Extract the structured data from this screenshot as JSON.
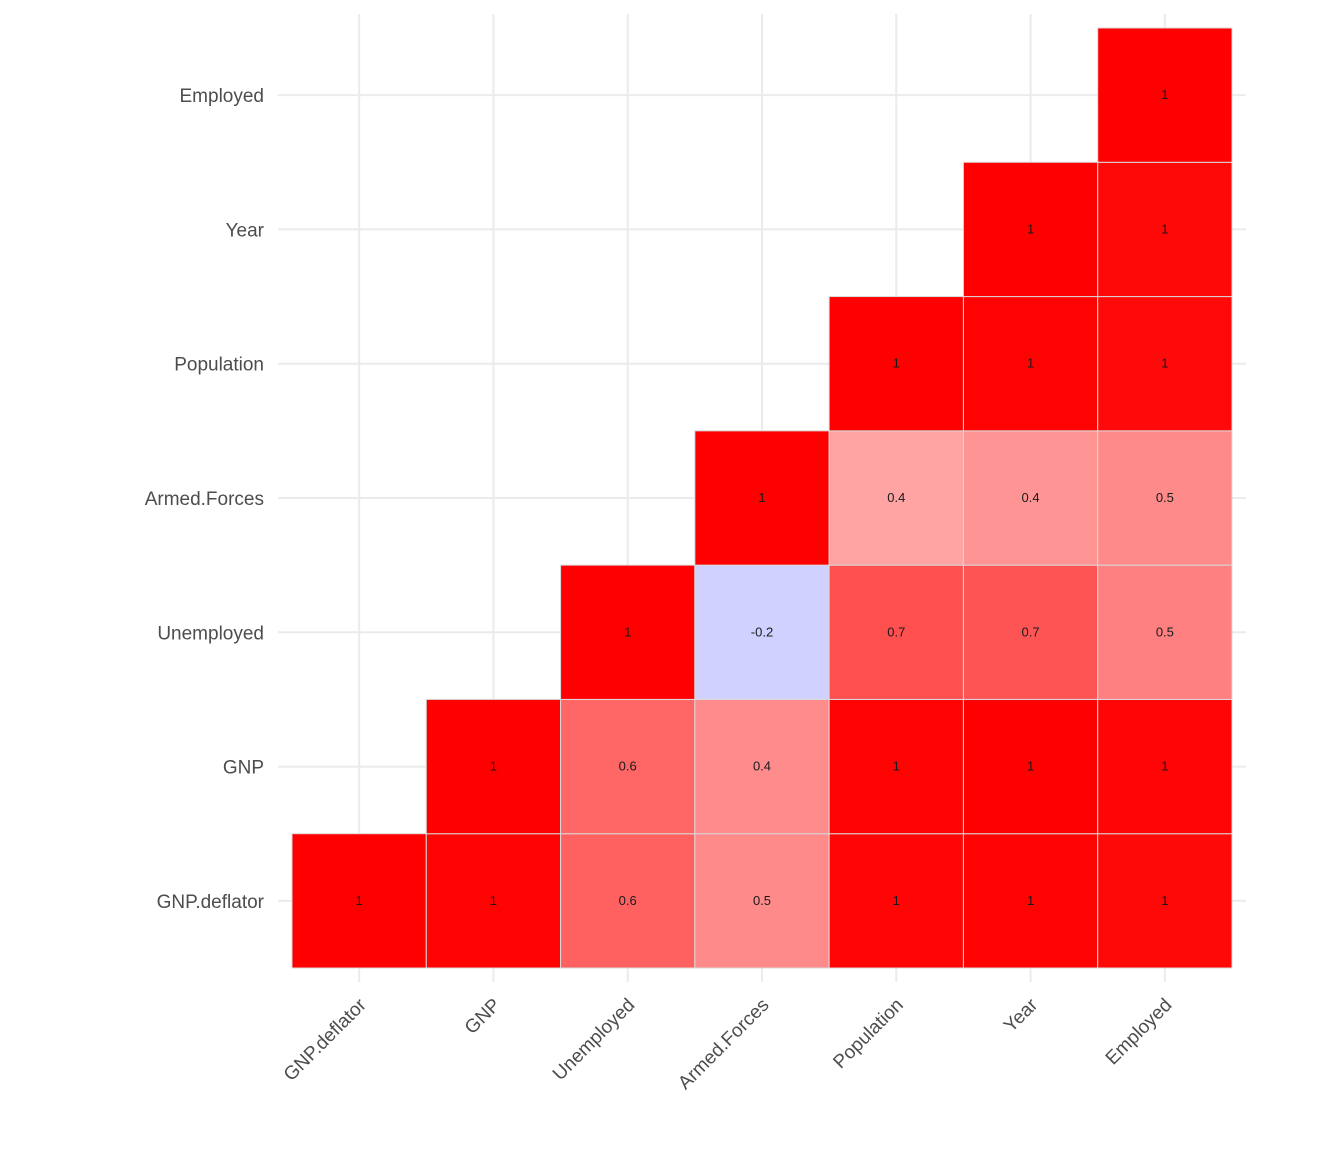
{
  "chart_data": {
    "type": "heatmap",
    "title": "",
    "xlabel": "",
    "ylabel": "",
    "variables": [
      "GNP.deflator",
      "GNP",
      "Unemployed",
      "Armed.Forces",
      "Population",
      "Year",
      "Employed"
    ],
    "cells": [
      {
        "x": "GNP.deflator",
        "y": "GNP.deflator",
        "value": 1.0,
        "label": "1"
      },
      {
        "x": "GNP",
        "y": "GNP.deflator",
        "value": 0.99,
        "label": "1"
      },
      {
        "x": "Unemployed",
        "y": "GNP.deflator",
        "value": 0.62,
        "label": "0.6"
      },
      {
        "x": "Armed.Forces",
        "y": "GNP.deflator",
        "value": 0.46,
        "label": "0.5"
      },
      {
        "x": "Population",
        "y": "GNP.deflator",
        "value": 0.98,
        "label": "1"
      },
      {
        "x": "Year",
        "y": "GNP.deflator",
        "value": 0.99,
        "label": "1"
      },
      {
        "x": "Employed",
        "y": "GNP.deflator",
        "value": 0.97,
        "label": "1"
      },
      {
        "x": "GNP",
        "y": "GNP",
        "value": 1.0,
        "label": "1"
      },
      {
        "x": "Unemployed",
        "y": "GNP",
        "value": 0.6,
        "label": "0.6"
      },
      {
        "x": "Armed.Forces",
        "y": "GNP",
        "value": 0.45,
        "label": "0.4"
      },
      {
        "x": "Population",
        "y": "GNP",
        "value": 0.99,
        "label": "1"
      },
      {
        "x": "Year",
        "y": "GNP",
        "value": 1.0,
        "label": "1"
      },
      {
        "x": "Employed",
        "y": "GNP",
        "value": 0.98,
        "label": "1"
      },
      {
        "x": "Unemployed",
        "y": "Unemployed",
        "value": 1.0,
        "label": "1"
      },
      {
        "x": "Armed.Forces",
        "y": "Unemployed",
        "value": -0.18,
        "label": "-0.2"
      },
      {
        "x": "Population",
        "y": "Unemployed",
        "value": 0.69,
        "label": "0.7"
      },
      {
        "x": "Year",
        "y": "Unemployed",
        "value": 0.67,
        "label": "0.7"
      },
      {
        "x": "Employed",
        "y": "Unemployed",
        "value": 0.5,
        "label": "0.5"
      },
      {
        "x": "Armed.Forces",
        "y": "Armed.Forces",
        "value": 1.0,
        "label": "1"
      },
      {
        "x": "Population",
        "y": "Armed.Forces",
        "value": 0.36,
        "label": "0.4"
      },
      {
        "x": "Year",
        "y": "Armed.Forces",
        "value": 0.42,
        "label": "0.4"
      },
      {
        "x": "Employed",
        "y": "Armed.Forces",
        "value": 0.46,
        "label": "0.5"
      },
      {
        "x": "Population",
        "y": "Population",
        "value": 1.0,
        "label": "1"
      },
      {
        "x": "Year",
        "y": "Population",
        "value": 0.99,
        "label": "1"
      },
      {
        "x": "Employed",
        "y": "Population",
        "value": 0.96,
        "label": "1"
      },
      {
        "x": "Year",
        "y": "Year",
        "value": 1.0,
        "label": "1"
      },
      {
        "x": "Employed",
        "y": "Year",
        "value": 0.97,
        "label": "1"
      },
      {
        "x": "Employed",
        "y": "Employed",
        "value": 1.0,
        "label": "1"
      }
    ],
    "color_scale": {
      "low": "#0000ff",
      "mid": "#ffffff",
      "high": "#ff0000",
      "domain": [
        -1,
        0,
        1
      ]
    },
    "grid": true,
    "legend": "none"
  }
}
